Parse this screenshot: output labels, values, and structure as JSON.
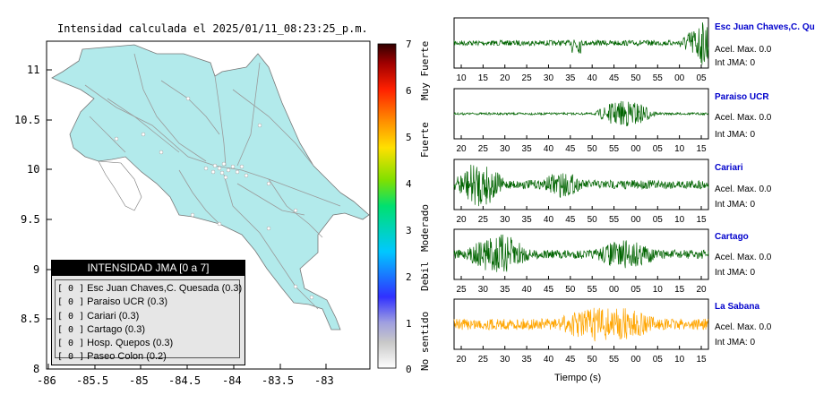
{
  "map": {
    "title": "Intensidad calculada el 2025/01/11_08:23:25_p.m.",
    "y_ticks": [
      "11",
      "10.5",
      "10",
      "9.5",
      "9",
      "8.5",
      "8"
    ],
    "x_ticks": [
      "-86",
      "-85.5",
      "-85",
      "-84.5",
      "-84",
      "-83.5",
      "-83"
    ],
    "land_color": "#b2eaeb",
    "road_color": "#9a9a9a"
  },
  "legend": {
    "header": "INTENSIDAD JMA [0 a 7]",
    "items": [
      {
        "bracket": "[ 0 ]",
        "label": "Esc Juan Chaves,C. Quesada (0.3)"
      },
      {
        "bracket": "[ 0 ]",
        "label": "Paraiso UCR (0.3)"
      },
      {
        "bracket": "[ 0 ]",
        "label": "Cariari (0.3)"
      },
      {
        "bracket": "[ 0 ]",
        "label": "Cartago (0.3)"
      },
      {
        "bracket": "[ 0 ]",
        "label": "Hosp. Quepos (0.3)"
      },
      {
        "bracket": "[ 0 ]",
        "label": "Paseo Colon (0.2)"
      }
    ]
  },
  "colorbar": {
    "ticks": [
      "7",
      "6",
      "5",
      "4",
      "3",
      "2",
      "1",
      "0"
    ],
    "categories": [
      "Muy Fuerte",
      "Fuerte",
      "Moderado",
      "Debil",
      "No sentido"
    ]
  },
  "stations": [
    {
      "name": "Esc Juan Chaves,C. Quesada",
      "acel": "Acel. Max. 0.0",
      "jma": "Int JMA: 0",
      "color": "#006400",
      "ticks": [
        "10",
        "15",
        "20",
        "25",
        "30",
        "35",
        "40",
        "45",
        "50",
        "55",
        "00",
        "05"
      ]
    },
    {
      "name": "Paraiso UCR",
      "acel": "Acel. Max. 0.0",
      "jma": "Int JMA: 0",
      "color": "#006400",
      "ticks": [
        "20",
        "25",
        "30",
        "35",
        "40",
        "45",
        "50",
        "55",
        "00",
        "05",
        "10",
        "15"
      ]
    },
    {
      "name": "Cariari",
      "acel": "Acel. Max. 0.0",
      "jma": "Int JMA: 0",
      "color": "#006400",
      "ticks": [
        "20",
        "25",
        "30",
        "35",
        "40",
        "45",
        "50",
        "55",
        "00",
        "05",
        "10",
        "15"
      ]
    },
    {
      "name": "Cartago",
      "acel": "Acel. Max. 0.0",
      "jma": "Int JMA: 0",
      "color": "#006400",
      "ticks": [
        "25",
        "30",
        "35",
        "40",
        "45",
        "50",
        "55",
        "00",
        "05",
        "10",
        "15",
        "20"
      ]
    },
    {
      "name": "La Sabana",
      "acel": "Acel. Max. 0.0",
      "jma": "Int JMA: 0",
      "color": "#ffa500",
      "ticks": [
        "20",
        "25",
        "30",
        "35",
        "40",
        "45",
        "50",
        "55",
        "00",
        "05",
        "10",
        "15"
      ]
    }
  ],
  "time_axis_label": "Tiempo (s)"
}
